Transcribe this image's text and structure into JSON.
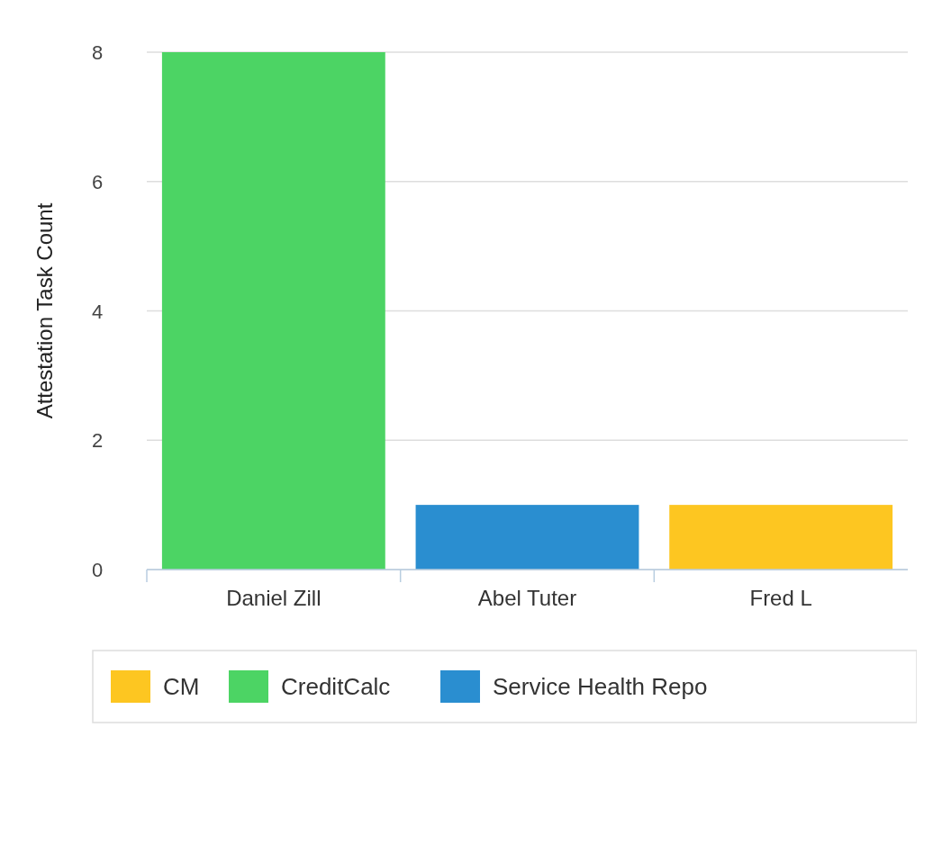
{
  "chart_data": {
    "type": "bar",
    "ylabel": "Attestation Task Count",
    "categories": [
      "Daniel Zill",
      "Abel Tuter",
      "Fred L"
    ],
    "series": [
      {
        "name": "CM",
        "color": "#fdc621",
        "values": [
          null,
          null,
          1
        ]
      },
      {
        "name": "CreditCalc",
        "color": "#4cd464",
        "values": [
          8,
          null,
          null
        ]
      },
      {
        "name": "Service Health Repo",
        "color": "#2a8ed0",
        "values": [
          null,
          1,
          null
        ]
      }
    ],
    "ylim": [
      0,
      8
    ],
    "yticks": [
      0,
      2,
      4,
      6,
      8
    ],
    "grid": "y",
    "legend": "bottom"
  }
}
